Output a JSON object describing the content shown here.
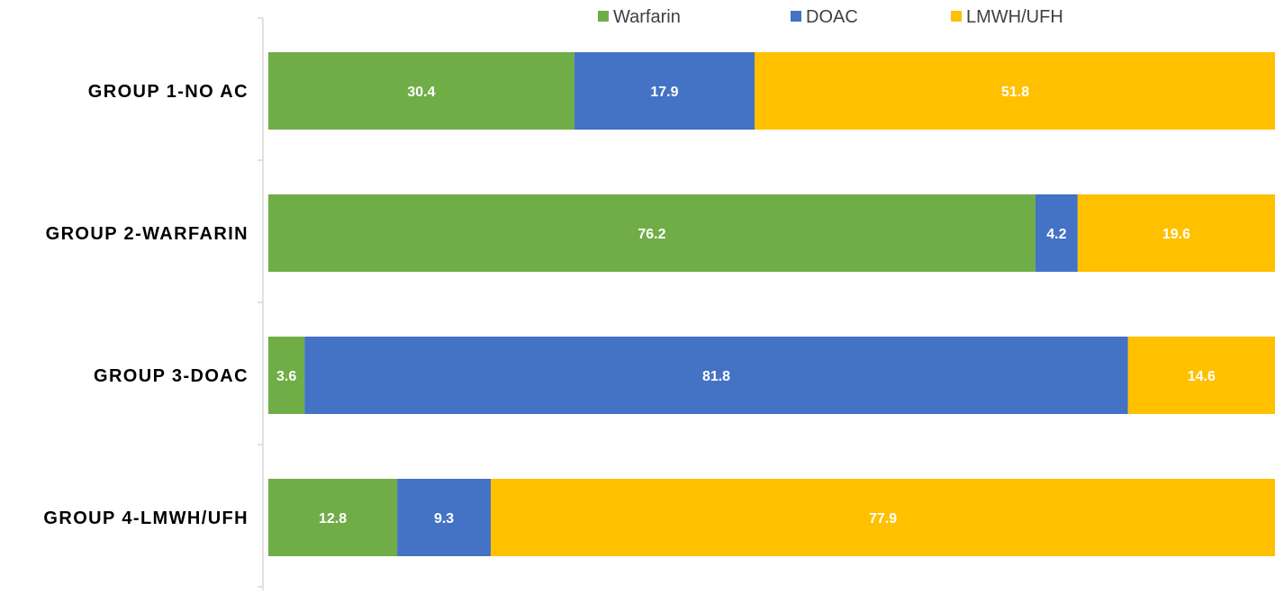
{
  "chart_data": {
    "type": "bar",
    "orientation": "horizontal",
    "stacked": true,
    "title": "",
    "xlabel": "",
    "ylabel": "",
    "xlim": [
      0,
      100
    ],
    "grid": false,
    "legend_position": "top-right",
    "categories": [
      "GROUP 1-NO AC",
      "GROUP 2-WARFARIN",
      "GROUP 3-DOAC",
      "GROUP 4-LMWH/UFH"
    ],
    "series": [
      {
        "name": "Warfarin",
        "color": "#70ad47",
        "values": [
          30.4,
          76.2,
          3.6,
          12.8
        ]
      },
      {
        "name": "DOAC",
        "color": "#4472c4",
        "values": [
          17.9,
          4.2,
          81.8,
          9.3
        ]
      },
      {
        "name": "LMWH/UFH",
        "color": "#ffc000",
        "values": [
          51.8,
          19.6,
          14.6,
          77.9
        ]
      }
    ]
  }
}
